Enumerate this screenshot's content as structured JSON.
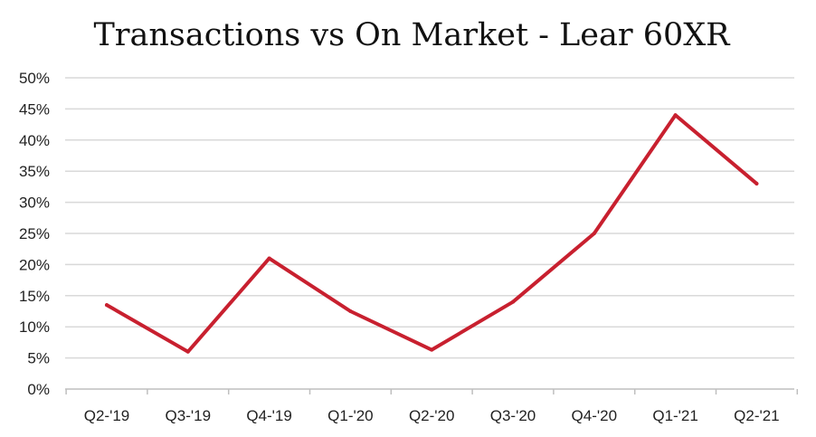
{
  "chart_data": {
    "type": "line",
    "title": "Transactions vs On Market - Lear 60XR",
    "xlabel": "",
    "ylabel": "",
    "categories": [
      "Q2-'19",
      "Q3-'19",
      "Q4-'19",
      "Q1-'20",
      "Q2-'20",
      "Q3-'20",
      "Q4-'20",
      "Q1-'21",
      "Q2-'21"
    ],
    "series": [
      {
        "values": [
          13.5,
          6,
          21,
          12.5,
          6.3,
          14,
          25,
          44,
          33
        ]
      }
    ],
    "ylim": [
      0,
      50
    ],
    "yticks": [
      0,
      5,
      10,
      15,
      20,
      25,
      30,
      35,
      40,
      45,
      50
    ],
    "ytick_labels": [
      "0%",
      "5%",
      "10%",
      "15%",
      "20%",
      "25%",
      "30%",
      "35%",
      "40%",
      "45%",
      "50%"
    ],
    "grid": true,
    "legend": "none",
    "colors": {
      "line": "#c8202f",
      "grid": "#d9d9d9",
      "axis": "#bfbfbf"
    }
  }
}
